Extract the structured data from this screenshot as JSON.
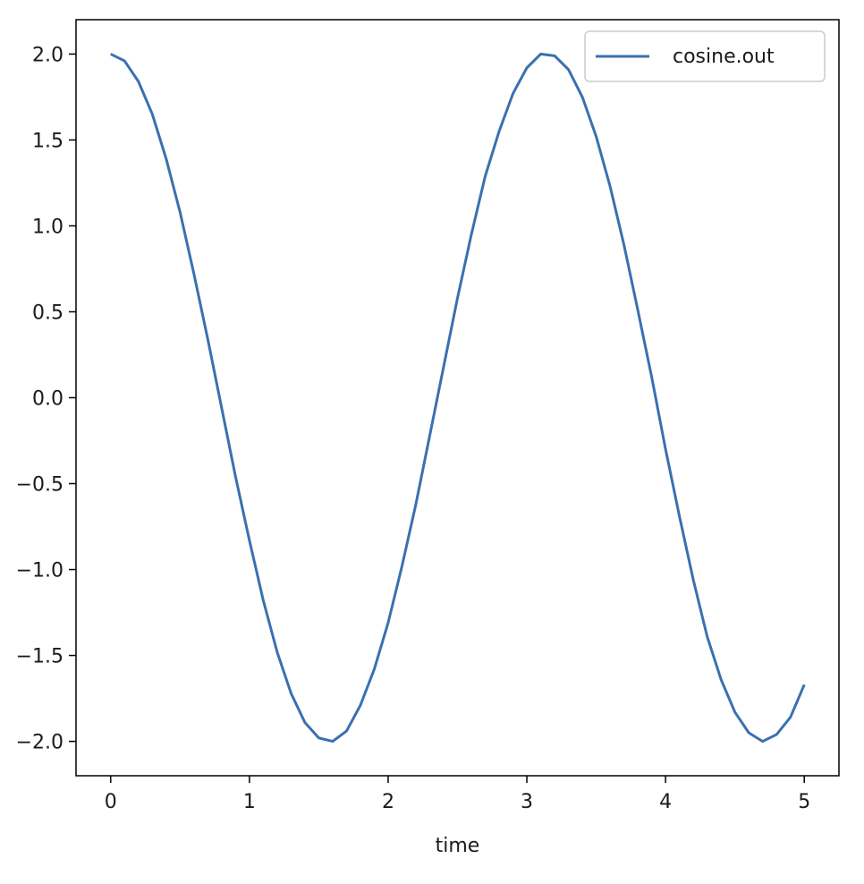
{
  "chart_data": {
    "type": "line",
    "title": "",
    "xlabel": "time",
    "ylabel": "",
    "xlim": [
      -0.25,
      5.25
    ],
    "ylim": [
      -2.2,
      2.2
    ],
    "xticks": [
      0,
      1,
      2,
      3,
      4,
      5
    ],
    "xtick_labels": [
      "0",
      "1",
      "2",
      "3",
      "4",
      "5"
    ],
    "yticks": [
      2.0,
      1.5,
      1.0,
      0.5,
      0.0,
      -0.5,
      -1.0,
      -1.5,
      -2.0
    ],
    "ytick_labels": [
      "2.0",
      "1.5",
      "1.0",
      "0.5",
      "0.0",
      "−0.5",
      "−1.0",
      "−1.5",
      "−2.0"
    ],
    "grid": false,
    "legend_position": "top-right",
    "series": [
      {
        "name": "cosine.out",
        "color": "#3a70b0",
        "x": [
          0.0,
          0.1,
          0.2,
          0.3,
          0.4,
          0.5,
          0.6,
          0.7,
          0.8,
          0.9,
          1.0,
          1.1,
          1.2,
          1.3,
          1.4,
          1.5,
          1.6,
          1.7,
          1.8,
          1.9,
          2.0,
          2.1,
          2.2,
          2.3,
          2.4,
          2.5,
          2.6,
          2.7,
          2.8,
          2.9,
          3.0,
          3.1,
          3.2,
          3.3,
          3.4,
          3.5,
          3.6,
          3.7,
          3.8,
          3.9,
          4.0,
          4.1,
          4.2,
          4.3,
          4.4,
          4.5,
          4.6,
          4.7,
          4.8,
          4.9,
          5.0
        ],
        "values": [
          2.0,
          1.96,
          1.84,
          1.65,
          1.39,
          1.08,
          0.72,
          0.34,
          -0.06,
          -0.46,
          -0.83,
          -1.18,
          -1.48,
          -1.72,
          -1.89,
          -1.98,
          -2.0,
          -1.94,
          -1.79,
          -1.58,
          -1.31,
          -0.98,
          -0.62,
          -0.22,
          0.18,
          0.58,
          0.95,
          1.29,
          1.55,
          1.77,
          1.92,
          2.0,
          1.99,
          1.91,
          1.75,
          1.52,
          1.23,
          0.89,
          0.51,
          0.12,
          -0.3,
          -0.69,
          -1.06,
          -1.39,
          -1.64,
          -1.83,
          -1.95,
          -2.0,
          -1.96,
          -1.86,
          -1.67
        ]
      }
    ]
  }
}
